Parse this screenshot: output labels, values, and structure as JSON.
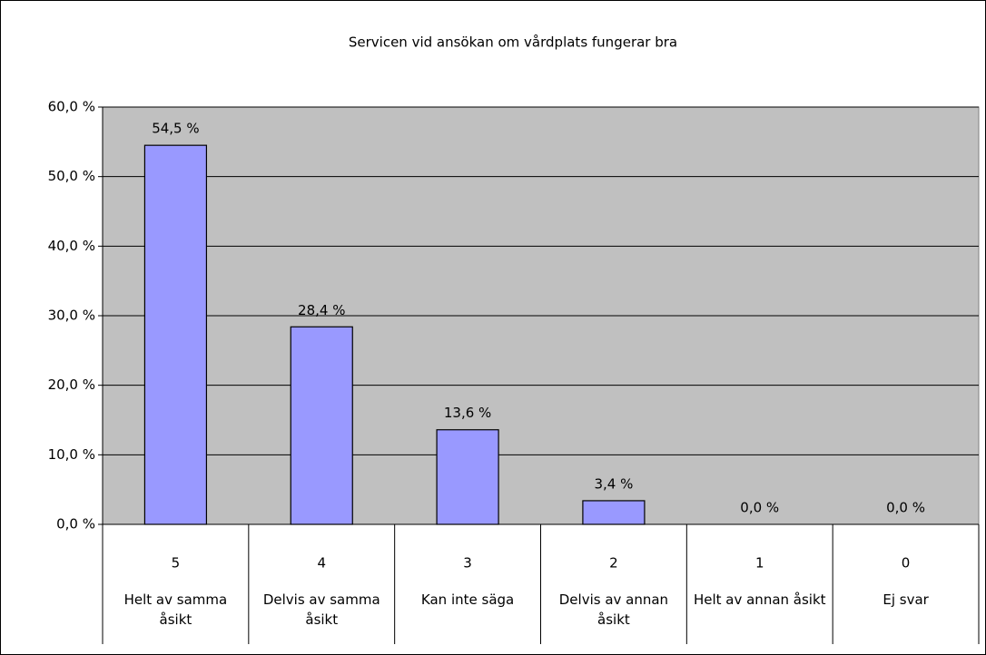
{
  "chart_data": {
    "type": "bar",
    "title": "Servicen vid ansökan om vårdplats fungerar bra",
    "categories": [
      "5",
      "4",
      "3",
      "2",
      "1",
      "0"
    ],
    "category_labels": [
      "Helt av samma åsikt",
      "Delvis av samma åsikt",
      "Kan inte säga",
      "Delvis av annan åsikt",
      "Helt av annan åsikt",
      "Ej svar"
    ],
    "values": [
      54.5,
      28.4,
      13.6,
      3.4,
      0,
      0
    ],
    "value_labels": [
      "54,5 %",
      "28,4 %",
      "13,6 %",
      "3,4 %",
      "0,0 %",
      "0,0 %"
    ],
    "color": "#9999ff",
    "ylim": [
      0,
      60
    ],
    "yticks": [
      {
        "value": 0,
        "label": "0,0 %"
      },
      {
        "value": 10,
        "label": "10,0 %"
      },
      {
        "value": 20,
        "label": "20,0 %"
      },
      {
        "value": 30,
        "label": "30,0 %"
      },
      {
        "value": 40,
        "label": "40,0 %"
      },
      {
        "value": 50,
        "label": "50,0 %"
      },
      {
        "value": 60,
        "label": "60,0 %"
      }
    ],
    "grid": true
  }
}
